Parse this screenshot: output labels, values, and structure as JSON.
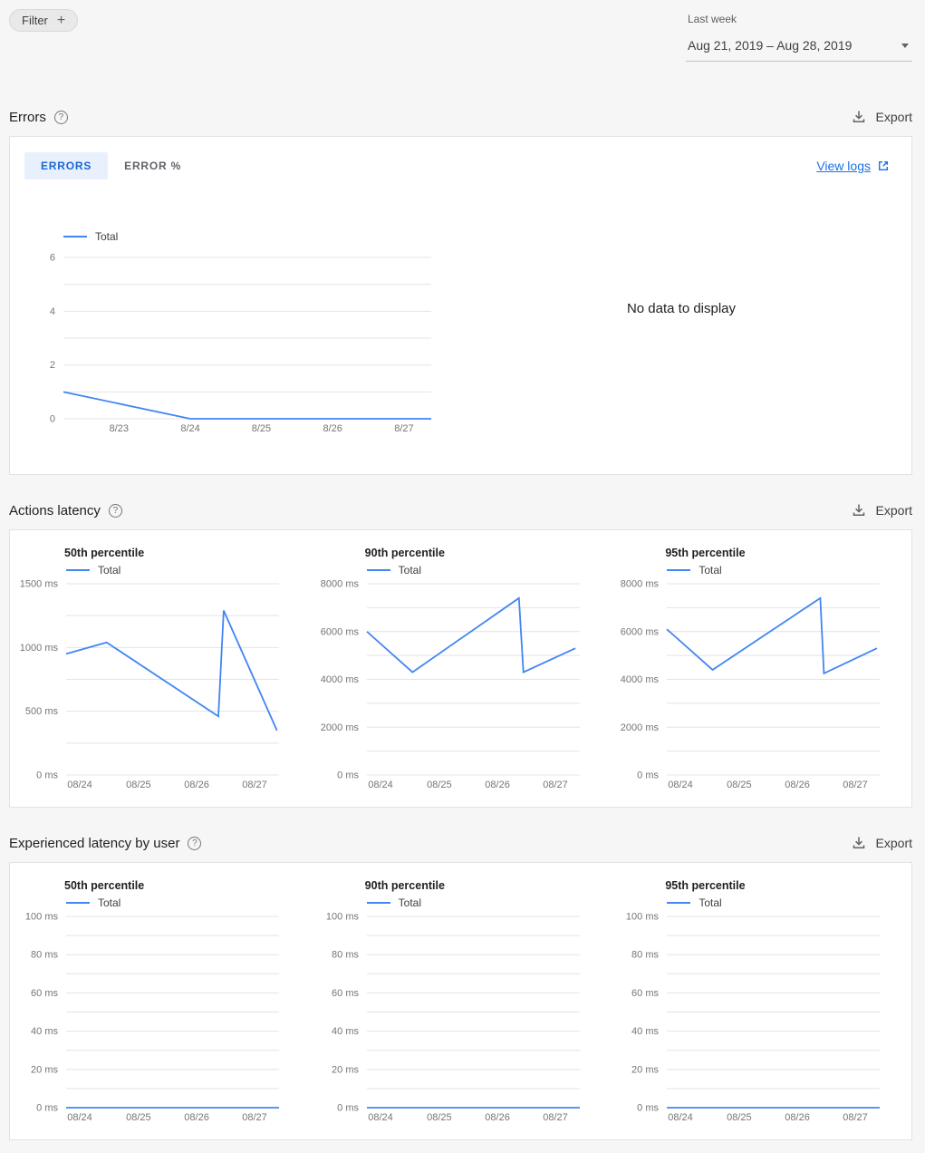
{
  "toolbar": {
    "filter_label": "Filter",
    "date_preset": "Last week",
    "date_range": "Aug 21, 2019 – Aug 28, 2019"
  },
  "icons": {
    "add": "+"
  },
  "labels": {
    "export": "Export"
  },
  "sections": {
    "errors": {
      "title": "Errors",
      "tabs": [
        "ERRORS",
        "ERROR %"
      ],
      "view_logs": "View logs",
      "no_data": "No data to display"
    },
    "actions": {
      "title": "Actions latency"
    },
    "user": {
      "title": "Experienced latency by user"
    }
  },
  "chart_data": [
    {
      "id": "errors",
      "type": "line",
      "title": "Errors",
      "y_ticks": [
        0,
        2,
        4,
        6
      ],
      "y_max": 6,
      "y_grid_step": 1,
      "y_suffix": "",
      "x_ticks": [
        {
          "label": "8/23",
          "pos": 0.151
        },
        {
          "label": "8/24",
          "pos": 0.345
        },
        {
          "label": "8/25",
          "pos": 0.538
        },
        {
          "label": "8/26",
          "pos": 0.732
        },
        {
          "label": "8/27",
          "pos": 0.926
        }
      ],
      "series": [
        {
          "name": "Total",
          "color": "#4285f4",
          "points": [
            [
              0,
              1
            ],
            [
              0.345,
              0
            ],
            [
              1,
              0
            ]
          ]
        }
      ]
    },
    {
      "id": "actions-p50",
      "type": "line",
      "title": "50th percentile",
      "y_ticks": [
        0,
        500,
        1000,
        1500
      ],
      "y_max": 1500,
      "y_grid_step": 250,
      "y_suffix": "ms",
      "x_ticks": [
        {
          "label": "08/24",
          "pos": 0.064
        },
        {
          "label": "08/25",
          "pos": 0.34
        },
        {
          "label": "08/26",
          "pos": 0.613
        },
        {
          "label": "08/27",
          "pos": 0.885
        }
      ],
      "series": [
        {
          "name": "Total",
          "color": "#4285f4",
          "points": [
            [
              0,
              950
            ],
            [
              0.19,
              1040
            ],
            [
              0.715,
              460
            ],
            [
              0.74,
              1290
            ],
            [
              0.99,
              350
            ]
          ]
        }
      ]
    },
    {
      "id": "actions-p90",
      "type": "line",
      "title": "90th percentile",
      "y_ticks": [
        0,
        2000,
        4000,
        6000,
        8000
      ],
      "y_max": 8000,
      "y_grid_step": 1000,
      "y_suffix": "ms",
      "x_ticks": [
        {
          "label": "08/24",
          "pos": 0.064
        },
        {
          "label": "08/25",
          "pos": 0.34
        },
        {
          "label": "08/26",
          "pos": 0.613
        },
        {
          "label": "08/27",
          "pos": 0.885
        }
      ],
      "series": [
        {
          "name": "Total",
          "color": "#4285f4",
          "points": [
            [
              0,
              6000
            ],
            [
              0.214,
              4300
            ],
            [
              0.714,
              7400
            ],
            [
              0.735,
              4300
            ],
            [
              0.979,
              5300
            ]
          ]
        }
      ]
    },
    {
      "id": "actions-p95",
      "type": "line",
      "title": "95th percentile",
      "y_ticks": [
        0,
        2000,
        4000,
        6000,
        8000
      ],
      "y_max": 8000,
      "y_grid_step": 1000,
      "y_suffix": "ms",
      "x_ticks": [
        {
          "label": "08/24",
          "pos": 0.064
        },
        {
          "label": "08/25",
          "pos": 0.34
        },
        {
          "label": "08/26",
          "pos": 0.613
        },
        {
          "label": "08/27",
          "pos": 0.885
        }
      ],
      "series": [
        {
          "name": "Total",
          "color": "#4285f4",
          "points": [
            [
              0,
              6100
            ],
            [
              0.215,
              4400
            ],
            [
              0.721,
              7400
            ],
            [
              0.738,
              4250
            ],
            [
              0.987,
              5300
            ]
          ]
        }
      ]
    },
    {
      "id": "user-p50",
      "type": "line",
      "title": "50th percentile",
      "y_ticks": [
        0,
        20,
        40,
        60,
        80,
        100
      ],
      "y_max": 100,
      "y_grid_step": 10,
      "y_suffix": "ms",
      "x_ticks": [
        {
          "label": "08/24",
          "pos": 0.064
        },
        {
          "label": "08/25",
          "pos": 0.34
        },
        {
          "label": "08/26",
          "pos": 0.613
        },
        {
          "label": "08/27",
          "pos": 0.885
        }
      ],
      "series": [
        {
          "name": "Total",
          "color": "#4285f4",
          "points": [
            [
              0,
              0
            ],
            [
              1,
              0
            ]
          ]
        }
      ]
    },
    {
      "id": "user-p90",
      "type": "line",
      "title": "90th percentile",
      "y_ticks": [
        0,
        20,
        40,
        60,
        80,
        100
      ],
      "y_max": 100,
      "y_grid_step": 10,
      "y_suffix": "ms",
      "x_ticks": [
        {
          "label": "08/24",
          "pos": 0.064
        },
        {
          "label": "08/25",
          "pos": 0.34
        },
        {
          "label": "08/26",
          "pos": 0.613
        },
        {
          "label": "08/27",
          "pos": 0.885
        }
      ],
      "series": [
        {
          "name": "Total",
          "color": "#4285f4",
          "points": [
            [
              0,
              0
            ],
            [
              1,
              0
            ]
          ]
        }
      ]
    },
    {
      "id": "user-p95",
      "type": "line",
      "title": "95th percentile",
      "y_ticks": [
        0,
        20,
        40,
        60,
        80,
        100
      ],
      "y_max": 100,
      "y_grid_step": 10,
      "y_suffix": "ms",
      "x_ticks": [
        {
          "label": "08/24",
          "pos": 0.064
        },
        {
          "label": "08/25",
          "pos": 0.34
        },
        {
          "label": "08/26",
          "pos": 0.613
        },
        {
          "label": "08/27",
          "pos": 0.885
        }
      ],
      "series": [
        {
          "name": "Total",
          "color": "#4285f4",
          "points": [
            [
              0,
              0
            ],
            [
              1,
              0
            ]
          ]
        }
      ]
    }
  ]
}
